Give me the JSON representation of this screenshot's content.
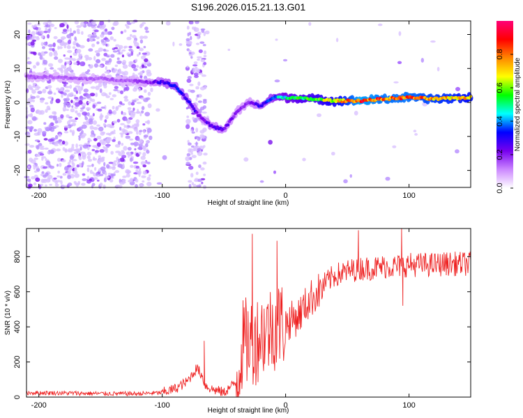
{
  "title": "S196.2026.015.21.13.G01",
  "chart_data": [
    {
      "type": "heatmap",
      "title": "S196.2026.015.21.13.G01",
      "xlabel": "Height of straight line (km)",
      "ylabel": "Frequency (Hz)",
      "xlim": [
        -210,
        150
      ],
      "ylim": [
        -25,
        24
      ],
      "xticks": [
        -200,
        -100,
        0,
        100
      ],
      "yticks": [
        20,
        10,
        0,
        -10,
        -20
      ],
      "colorbar": {
        "label": "Normalized spectral amplitude",
        "range": [
          0.0,
          1.0
        ],
        "ticks": [
          "0.0",
          "0.2",
          "0.4",
          "0.6",
          "0.8"
        ],
        "colors": [
          "#ffffff",
          "#cc88ff",
          "#7700ee",
          "#0000ff",
          "#00ffff",
          "#00ff00",
          "#ffff00",
          "#ff8800",
          "#ff0000",
          "#ff0077"
        ]
      },
      "ridge": {
        "x": [
          -210,
          -190,
          -170,
          -150,
          -130,
          -110,
          -100,
          -90,
          -80,
          -70,
          -60,
          -50,
          -40,
          -30,
          -20,
          -10,
          0,
          20,
          40,
          60,
          80,
          100,
          120,
          150
        ],
        "freq_hz": [
          7.5,
          7.5,
          7,
          7,
          6.5,
          6,
          6,
          5,
          1,
          -4,
          -7,
          -8,
          -3,
          0,
          -1,
          1.5,
          1.5,
          1,
          0.5,
          0.5,
          1,
          1.5,
          1,
          1.5
        ],
        "amplitude": [
          0.15,
          0.15,
          0.15,
          0.15,
          0.15,
          0.2,
          0.3,
          0.35,
          0.3,
          0.25,
          0.25,
          0.25,
          0.2,
          0.2,
          0.3,
          0.4,
          0.5,
          0.6,
          0.7,
          0.9,
          0.85,
          0.85,
          0.8,
          0.75
        ]
      }
    },
    {
      "type": "line",
      "xlabel": "Height of straight line (km)",
      "ylabel": "SNR (10 * v/v)",
      "xlim": [
        -210,
        150
      ],
      "ylim": [
        0,
        960
      ],
      "xticks": [
        -200,
        -100,
        0,
        100
      ],
      "yticks": [
        0,
        200,
        400,
        600,
        800
      ],
      "series": [
        {
          "name": "SNR",
          "color": "#ee2222",
          "x": [
            -210,
            -180,
            -150,
            -120,
            -100,
            -90,
            -80,
            -72,
            -68,
            -65,
            -60,
            -50,
            -40,
            -35,
            -30,
            -25,
            -20,
            -15,
            -10,
            -5,
            0,
            10,
            20,
            30,
            40,
            50,
            60,
            70,
            80,
            90,
            100,
            110,
            120,
            130,
            140,
            150
          ],
          "values": [
            20,
            18,
            15,
            14,
            20,
            40,
            80,
            160,
            120,
            60,
            40,
            20,
            80,
            300,
            320,
            320,
            360,
            380,
            400,
            420,
            420,
            460,
            560,
            620,
            680,
            700,
            720,
            720,
            730,
            730,
            740,
            740,
            740,
            745,
            745,
            745
          ],
          "spikes": [
            {
              "x": -66,
              "value": 320
            },
            {
              "x": -27,
              "value": 930
            },
            {
              "x": -7,
              "value": 890
            },
            {
              "x": 59,
              "value": 950
            },
            {
              "x": 94,
              "value": 960
            },
            {
              "x": 95,
              "value": 520
            }
          ]
        }
      ]
    }
  ]
}
